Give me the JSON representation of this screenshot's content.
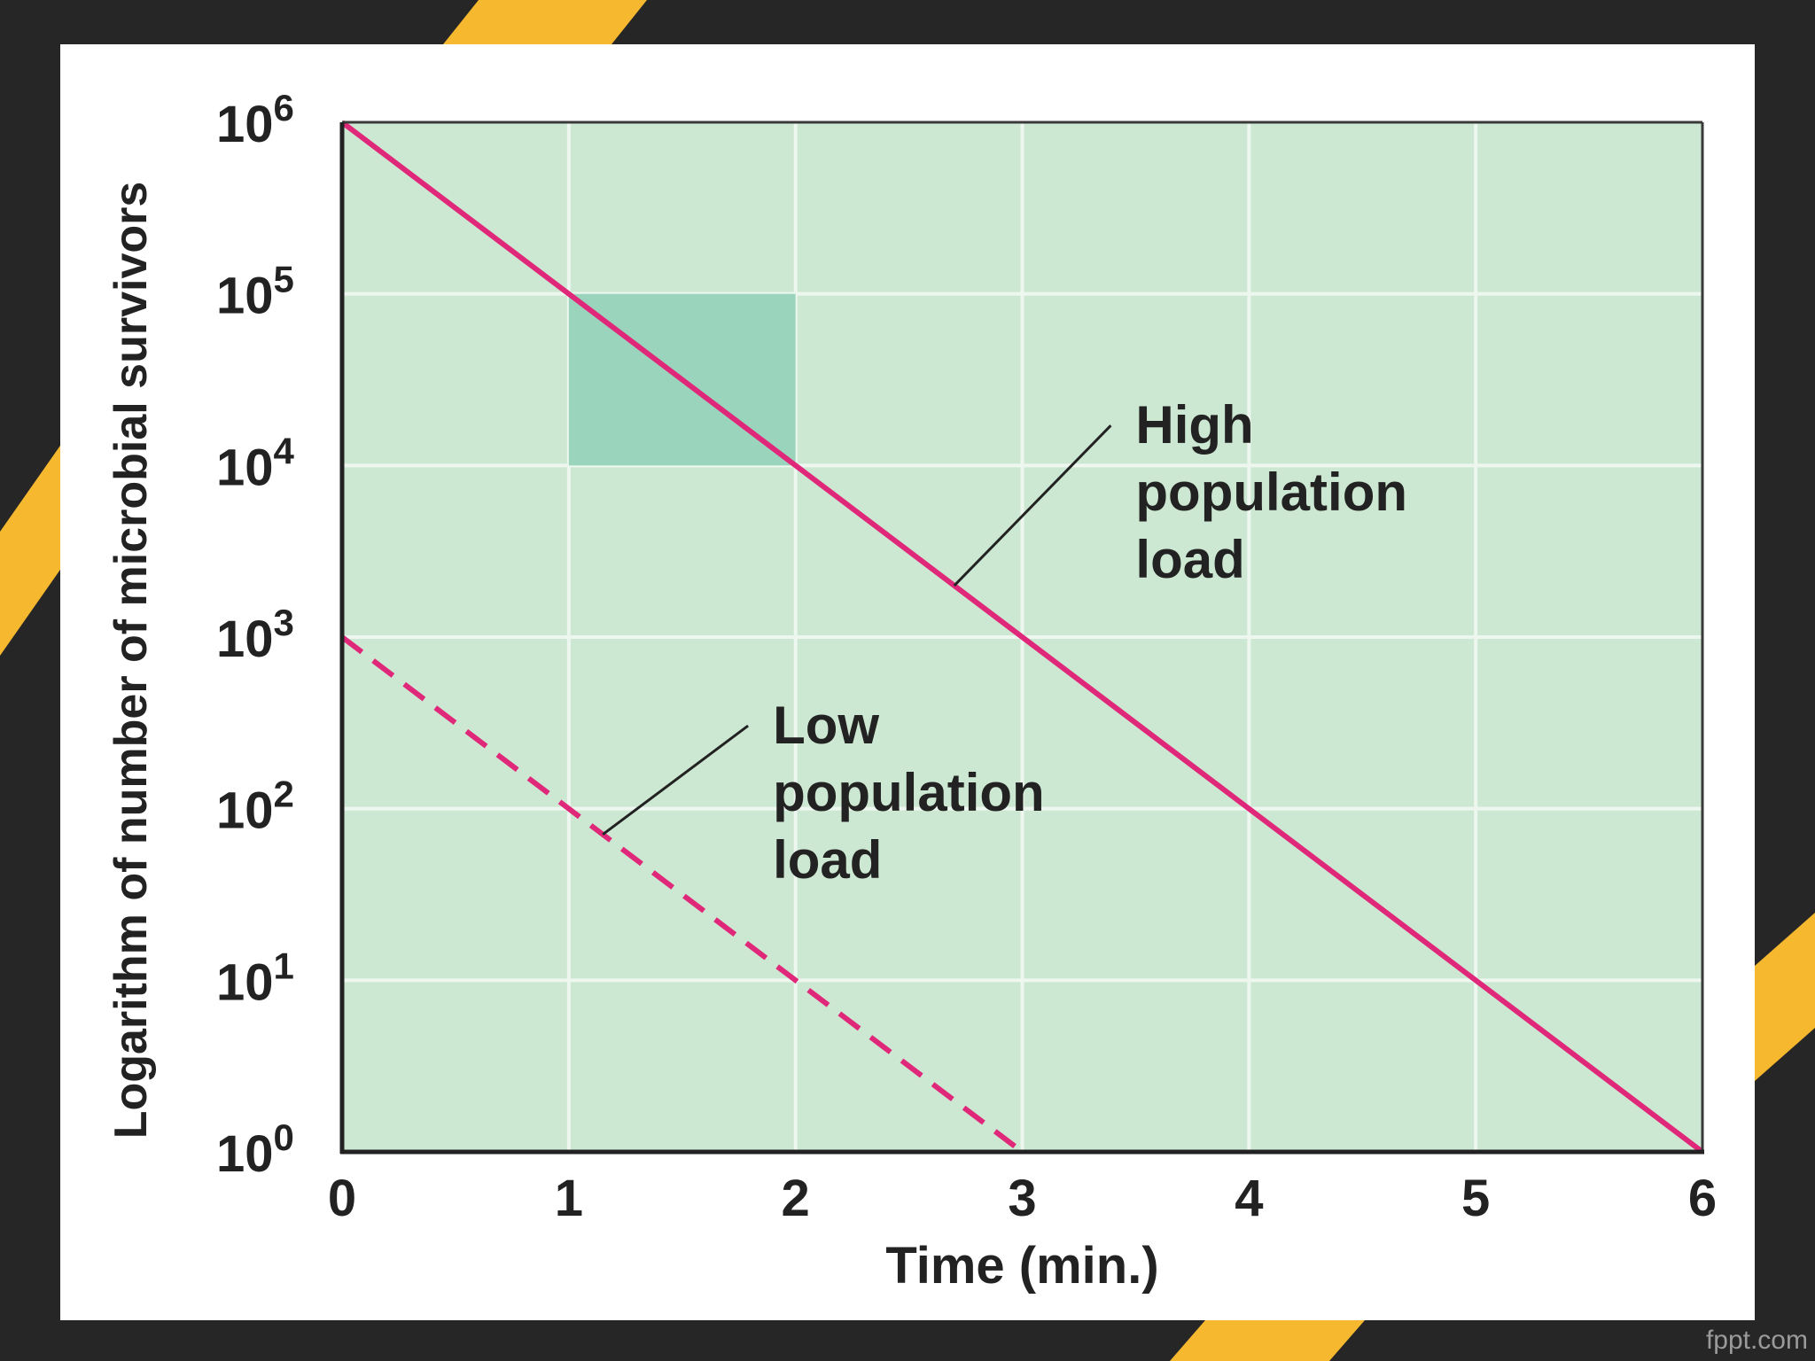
{
  "colors": {
    "slide_background": "#262626",
    "accent_stripe": "#f5b82e",
    "card": "#ffffff",
    "plot_background": "#cde8d2",
    "gridline": "#eef7ef",
    "highlight_box": "#9bd4bd",
    "line_color": "#e0287a",
    "text": "#222222"
  },
  "watermark": "fppt.com",
  "chart_data": {
    "type": "line",
    "xlabel": "Time (min.)",
    "ylabel": "Logarithm of number of microbial survivors",
    "x_ticks": [
      "0",
      "1",
      "2",
      "3",
      "4",
      "5",
      "6"
    ],
    "y_ticks": [
      {
        "base": "10",
        "exp": "0"
      },
      {
        "base": "10",
        "exp": "1"
      },
      {
        "base": "10",
        "exp": "2"
      },
      {
        "base": "10",
        "exp": "3"
      },
      {
        "base": "10",
        "exp": "4"
      },
      {
        "base": "10",
        "exp": "5"
      },
      {
        "base": "10",
        "exp": "6"
      }
    ],
    "xlim": [
      0,
      6
    ],
    "ylim": [
      0,
      6
    ],
    "y_scale": "log",
    "grid": true,
    "series": [
      {
        "name_lines": [
          "High",
          "population",
          "load"
        ],
        "style": "solid",
        "x": [
          0,
          6
        ],
        "y_log10": [
          6,
          0
        ]
      },
      {
        "name_lines": [
          "Low",
          "population",
          "load"
        ],
        "style": "dashed",
        "x": [
          0,
          3
        ],
        "y_log10": [
          3,
          0
        ]
      }
    ],
    "highlight_region": {
      "x": [
        1,
        2
      ],
      "y_log10": [
        4,
        5
      ]
    },
    "annotations": [
      {
        "series_index": 0,
        "point_x": 2.7,
        "label_x": 3.5,
        "label_y_log10": 4.13
      },
      {
        "series_index": 1,
        "point_x": 1.15,
        "label_x": 1.9,
        "label_y_log10": 2.38
      }
    ]
  }
}
